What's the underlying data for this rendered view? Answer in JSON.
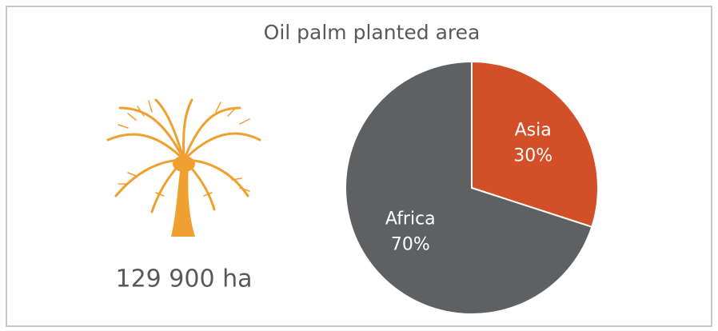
{
  "chart_data": {
    "type": "pie",
    "title": "Oil palm planted area",
    "annotation": "129 900 ha",
    "categories": [
      "Asia",
      "Africa"
    ],
    "values": [
      30,
      70
    ],
    "value_labels": [
      "30%",
      "70%"
    ],
    "colors": [
      "#d24f27",
      "#5f6062"
    ]
  }
}
